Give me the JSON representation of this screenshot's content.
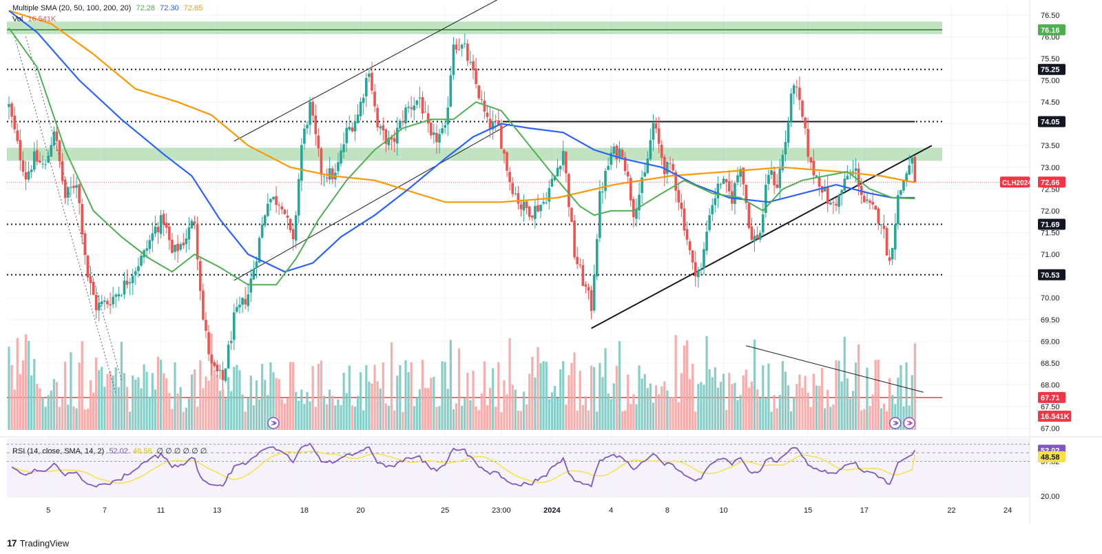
{
  "legend": {
    "sma_label": "Multiple SMA (20, 50, 100, 200, 20)",
    "sma_v1": "72.28",
    "sma_v2": "72.30",
    "sma_v3": "72.65",
    "vol_label": "Vol",
    "vol_value": "16.541K",
    "rsi_label": "RSI (14, close, SMA, 14, 2)",
    "rsi_v1": "52.02",
    "rsi_v2": "48.58",
    "rsi_extra": "∅ ∅ ∅ ∅ ∅ ∅"
  },
  "brand": {
    "name": "TradingView"
  },
  "colors": {
    "up": "#26a69a",
    "down": "#ef5350",
    "sma20": "#4caf50",
    "sma50": "#2962ff",
    "sma100": "#ff9800",
    "zone": "#4caf50",
    "rsi": "#7e57c2",
    "rsi_ma": "#f5e14a"
  },
  "chart_data": {
    "type": "candlestick",
    "symbol": "CLH2024",
    "price_axis": {
      "min": 66.9,
      "max": 76.75,
      "ticks": [
        "76.50",
        "76.00",
        "75.50",
        "75.00",
        "74.50",
        "74.00",
        "73.50",
        "73.00",
        "72.50",
        "72.00",
        "71.50",
        "71.00",
        "70.50",
        "70.00",
        "69.50",
        "69.00",
        "68.50",
        "68.00",
        "67.50",
        "67.00"
      ]
    },
    "x_axis": {
      "labels": [
        {
          "t": 14,
          "label": "5"
        },
        {
          "t": 34,
          "label": "7"
        },
        {
          "t": 54,
          "label": "11"
        },
        {
          "t": 74,
          "label": "13"
        },
        {
          "t": 105,
          "label": "18"
        },
        {
          "t": 125,
          "label": "20"
        },
        {
          "t": 155,
          "label": "25"
        },
        {
          "t": 175,
          "label": "23:00"
        },
        {
          "t": 193,
          "label": "2024"
        },
        {
          "t": 214,
          "label": "4"
        },
        {
          "t": 234,
          "label": "8"
        },
        {
          "t": 254,
          "label": "10"
        },
        {
          "t": 284,
          "label": "15"
        },
        {
          "t": 304,
          "label": "17"
        },
        {
          "t": 335,
          "label": "22"
        },
        {
          "t": 355,
          "label": "24"
        }
      ],
      "max_t": 365
    },
    "anchors": [
      {
        "t": 0,
        "p": 74.4
      },
      {
        "t": 3,
        "p": 73.5
      },
      {
        "t": 6,
        "p": 72.8
      },
      {
        "t": 9,
        "p": 73.2
      },
      {
        "t": 13,
        "p": 73.0
      },
      {
        "t": 16,
        "p": 73.9
      },
      {
        "t": 20,
        "p": 72.3
      },
      {
        "t": 24,
        "p": 72.7
      },
      {
        "t": 28,
        "p": 70.5
      },
      {
        "t": 31,
        "p": 69.8
      },
      {
        "t": 35,
        "p": 69.9
      },
      {
        "t": 40,
        "p": 70.2
      },
      {
        "t": 44,
        "p": 70.6
      },
      {
        "t": 48,
        "p": 71.0
      },
      {
        "t": 52,
        "p": 71.6
      },
      {
        "t": 55,
        "p": 71.8
      },
      {
        "t": 58,
        "p": 71.0
      },
      {
        "t": 62,
        "p": 71.3
      },
      {
        "t": 66,
        "p": 71.8
      },
      {
        "t": 69,
        "p": 69.5
      },
      {
        "t": 72,
        "p": 68.4
      },
      {
        "t": 76,
        "p": 68.1
      },
      {
        "t": 80,
        "p": 69.5
      },
      {
        "t": 85,
        "p": 70.1
      },
      {
        "t": 88,
        "p": 71.0
      },
      {
        "t": 92,
        "p": 72.3
      },
      {
        "t": 97,
        "p": 72.2
      },
      {
        "t": 101,
        "p": 71.2
      },
      {
        "t": 104,
        "p": 73.5
      },
      {
        "t": 107,
        "p": 74.4
      },
      {
        "t": 111,
        "p": 72.9
      },
      {
        "t": 116,
        "p": 72.8
      },
      {
        "t": 120,
        "p": 73.8
      },
      {
        "t": 124,
        "p": 74.2
      },
      {
        "t": 128,
        "p": 75.3
      },
      {
        "t": 131,
        "p": 73.9
      },
      {
        "t": 136,
        "p": 73.5
      },
      {
        "t": 141,
        "p": 74.3
      },
      {
        "t": 146,
        "p": 74.6
      },
      {
        "t": 150,
        "p": 73.6
      },
      {
        "t": 155,
        "p": 73.8
      },
      {
        "t": 158,
        "p": 75.9
      },
      {
        "t": 162,
        "p": 75.7
      },
      {
        "t": 166,
        "p": 74.9
      },
      {
        "t": 170,
        "p": 74.0
      },
      {
        "t": 174,
        "p": 73.9
      },
      {
        "t": 178,
        "p": 72.7
      },
      {
        "t": 182,
        "p": 72.1
      },
      {
        "t": 186,
        "p": 72.0
      },
      {
        "t": 190,
        "p": 72.2
      },
      {
        "t": 194,
        "p": 72.8
      },
      {
        "t": 197,
        "p": 73.4
      },
      {
        "t": 201,
        "p": 71.0
      },
      {
        "t": 204,
        "p": 70.4
      },
      {
        "t": 207,
        "p": 69.8
      },
      {
        "t": 210,
        "p": 72.3
      },
      {
        "t": 214,
        "p": 73.3
      },
      {
        "t": 218,
        "p": 73.4
      },
      {
        "t": 222,
        "p": 72.0
      },
      {
        "t": 226,
        "p": 72.8
      },
      {
        "t": 229,
        "p": 74.0
      },
      {
        "t": 233,
        "p": 73.0
      },
      {
        "t": 236,
        "p": 72.9
      },
      {
        "t": 240,
        "p": 71.7
      },
      {
        "t": 243,
        "p": 70.7
      },
      {
        "t": 246,
        "p": 70.6
      },
      {
        "t": 249,
        "p": 72.0
      },
      {
        "t": 253,
        "p": 72.7
      },
      {
        "t": 257,
        "p": 72.3
      },
      {
        "t": 260,
        "p": 73.1
      },
      {
        "t": 264,
        "p": 71.3
      },
      {
        "t": 267,
        "p": 71.5
      },
      {
        "t": 270,
        "p": 72.9
      },
      {
        "t": 273,
        "p": 72.6
      },
      {
        "t": 276,
        "p": 73.6
      },
      {
        "t": 279,
        "p": 75.0
      },
      {
        "t": 282,
        "p": 74.1
      },
      {
        "t": 285,
        "p": 73.0
      },
      {
        "t": 288,
        "p": 72.7
      },
      {
        "t": 292,
        "p": 72.1
      },
      {
        "t": 295,
        "p": 72.3
      },
      {
        "t": 298,
        "p": 72.8
      },
      {
        "t": 301,
        "p": 72.9
      },
      {
        "t": 304,
        "p": 72.2
      },
      {
        "t": 307,
        "p": 72.0
      },
      {
        "t": 310,
        "p": 71.8
      },
      {
        "t": 313,
        "p": 70.8
      },
      {
        "t": 316,
        "p": 72.3
      },
      {
        "t": 319,
        "p": 72.9
      },
      {
        "t": 321,
        "p": 73.1
      },
      {
        "t": 322,
        "p": 72.66
      }
    ],
    "sma20": [
      {
        "t": 0,
        "p": 76.2
      },
      {
        "t": 10,
        "p": 75.3
      },
      {
        "t": 20,
        "p": 73.4
      },
      {
        "t": 30,
        "p": 72.0
      },
      {
        "t": 40,
        "p": 71.4
      },
      {
        "t": 50,
        "p": 70.9
      },
      {
        "t": 58,
        "p": 70.6
      },
      {
        "t": 66,
        "p": 71.0
      },
      {
        "t": 75,
        "p": 70.7
      },
      {
        "t": 85,
        "p": 70.3
      },
      {
        "t": 95,
        "p": 70.3
      },
      {
        "t": 102,
        "p": 70.9
      },
      {
        "t": 110,
        "p": 71.8
      },
      {
        "t": 120,
        "p": 72.7
      },
      {
        "t": 130,
        "p": 73.4
      },
      {
        "t": 140,
        "p": 73.9
      },
      {
        "t": 150,
        "p": 74.1
      },
      {
        "t": 158,
        "p": 74.1
      },
      {
        "t": 166,
        "p": 74.5
      },
      {
        "t": 175,
        "p": 74.3
      },
      {
        "t": 185,
        "p": 73.5
      },
      {
        "t": 195,
        "p": 72.7
      },
      {
        "t": 203,
        "p": 72.1
      },
      {
        "t": 208,
        "p": 71.9
      },
      {
        "t": 214,
        "p": 72.0
      },
      {
        "t": 222,
        "p": 72.0
      },
      {
        "t": 232,
        "p": 72.4
      },
      {
        "t": 240,
        "p": 72.7
      },
      {
        "t": 250,
        "p": 72.4
      },
      {
        "t": 260,
        "p": 72.3
      },
      {
        "t": 268,
        "p": 72.0
      },
      {
        "t": 275,
        "p": 72.5
      },
      {
        "t": 282,
        "p": 72.7
      },
      {
        "t": 290,
        "p": 72.8
      },
      {
        "t": 298,
        "p": 72.9
      },
      {
        "t": 306,
        "p": 72.5
      },
      {
        "t": 314,
        "p": 72.3
      },
      {
        "t": 322,
        "p": 72.28
      }
    ],
    "sma50": [
      {
        "t": 0,
        "p": 76.6
      },
      {
        "t": 10,
        "p": 76.1
      },
      {
        "t": 25,
        "p": 75.0
      },
      {
        "t": 40,
        "p": 74.1
      },
      {
        "t": 55,
        "p": 73.3
      },
      {
        "t": 65,
        "p": 72.8
      },
      {
        "t": 75,
        "p": 71.8
      },
      {
        "t": 85,
        "p": 71.0
      },
      {
        "t": 98,
        "p": 70.6
      },
      {
        "t": 108,
        "p": 70.8
      },
      {
        "t": 118,
        "p": 71.4
      },
      {
        "t": 130,
        "p": 71.9
      },
      {
        "t": 142,
        "p": 72.5
      },
      {
        "t": 155,
        "p": 73.2
      },
      {
        "t": 165,
        "p": 73.7
      },
      {
        "t": 175,
        "p": 74.0
      },
      {
        "t": 185,
        "p": 73.9
      },
      {
        "t": 197,
        "p": 73.8
      },
      {
        "t": 208,
        "p": 73.4
      },
      {
        "t": 218,
        "p": 73.2
      },
      {
        "t": 232,
        "p": 73.0
      },
      {
        "t": 244,
        "p": 72.6
      },
      {
        "t": 256,
        "p": 72.3
      },
      {
        "t": 270,
        "p": 72.2
      },
      {
        "t": 282,
        "p": 72.4
      },
      {
        "t": 294,
        "p": 72.6
      },
      {
        "t": 306,
        "p": 72.4
      },
      {
        "t": 314,
        "p": 72.3
      },
      {
        "t": 322,
        "p": 72.3
      }
    ],
    "sma100": [
      {
        "t": 0,
        "p": 76.6
      },
      {
        "t": 15,
        "p": 76.3
      },
      {
        "t": 30,
        "p": 75.6
      },
      {
        "t": 45,
        "p": 74.8
      },
      {
        "t": 60,
        "p": 74.5
      },
      {
        "t": 72,
        "p": 74.2
      },
      {
        "t": 85,
        "p": 73.5
      },
      {
        "t": 100,
        "p": 73.0
      },
      {
        "t": 115,
        "p": 72.8
      },
      {
        "t": 130,
        "p": 72.7
      },
      {
        "t": 145,
        "p": 72.4
      },
      {
        "t": 155,
        "p": 72.2
      },
      {
        "t": 175,
        "p": 72.2
      },
      {
        "t": 195,
        "p": 72.3
      },
      {
        "t": 215,
        "p": 72.6
      },
      {
        "t": 235,
        "p": 72.8
      },
      {
        "t": 255,
        "p": 72.9
      },
      {
        "t": 275,
        "p": 73.0
      },
      {
        "t": 295,
        "p": 72.9
      },
      {
        "t": 310,
        "p": 72.8
      },
      {
        "t": 322,
        "p": 72.65
      }
    ],
    "horizontal_levels": [
      {
        "value": 76.16,
        "label": "76.16",
        "style": "zone_line"
      },
      {
        "value": 75.25,
        "label": "75.25",
        "style": "dotted"
      },
      {
        "value": 74.05,
        "label": "74.05",
        "style": "dotted"
      },
      {
        "value": 71.69,
        "label": "71.69",
        "style": "dotted"
      },
      {
        "value": 70.53,
        "label": "70.53",
        "style": "dotted"
      },
      {
        "value": 67.71,
        "label": "67.71",
        "style": "red_line"
      }
    ],
    "zones": [
      {
        "from": 76.06,
        "to": 76.35
      },
      {
        "from": 73.15,
        "to": 73.45
      }
    ],
    "resistance_line": {
      "from_t": 176,
      "to_t": 322,
      "value": 74.05
    },
    "trendlines": [
      {
        "t1": 80,
        "p1": 73.6,
        "t2": 175,
        "p2": 76.9,
        "w": 1
      },
      {
        "t1": 80,
        "p1": 70.4,
        "t2": 178,
        "p2": 74.0,
        "w": 1
      },
      {
        "t1": 207,
        "p1": 69.3,
        "t2": 328,
        "p2": 73.5,
        "w": 2
      },
      {
        "t1": 262,
        "p1": 68.9,
        "t2": 325,
        "p2": 67.83,
        "w": 1
      }
    ],
    "dotted_trendlines": [
      {
        "t1": 2,
        "p1": 76.0,
        "t2": 38,
        "p2": 67.8
      },
      {
        "t1": 6,
        "p1": 76.0,
        "t2": 40,
        "p2": 68.1
      }
    ],
    "last_price": {
      "value": 72.66,
      "symbol": "CLH2024",
      "label": "72.66"
    },
    "volume": {
      "last_label": "16.541K",
      "max": 100
    },
    "rsi": {
      "axis_ticks": [
        "53.55",
        "37.82",
        "20.00"
      ],
      "upper": 56.5,
      "middle": 50.0,
      "lower": 43.5,
      "min": 18,
      "max": 59,
      "last_rsi": "52.02",
      "last_ma": "48.58"
    }
  }
}
